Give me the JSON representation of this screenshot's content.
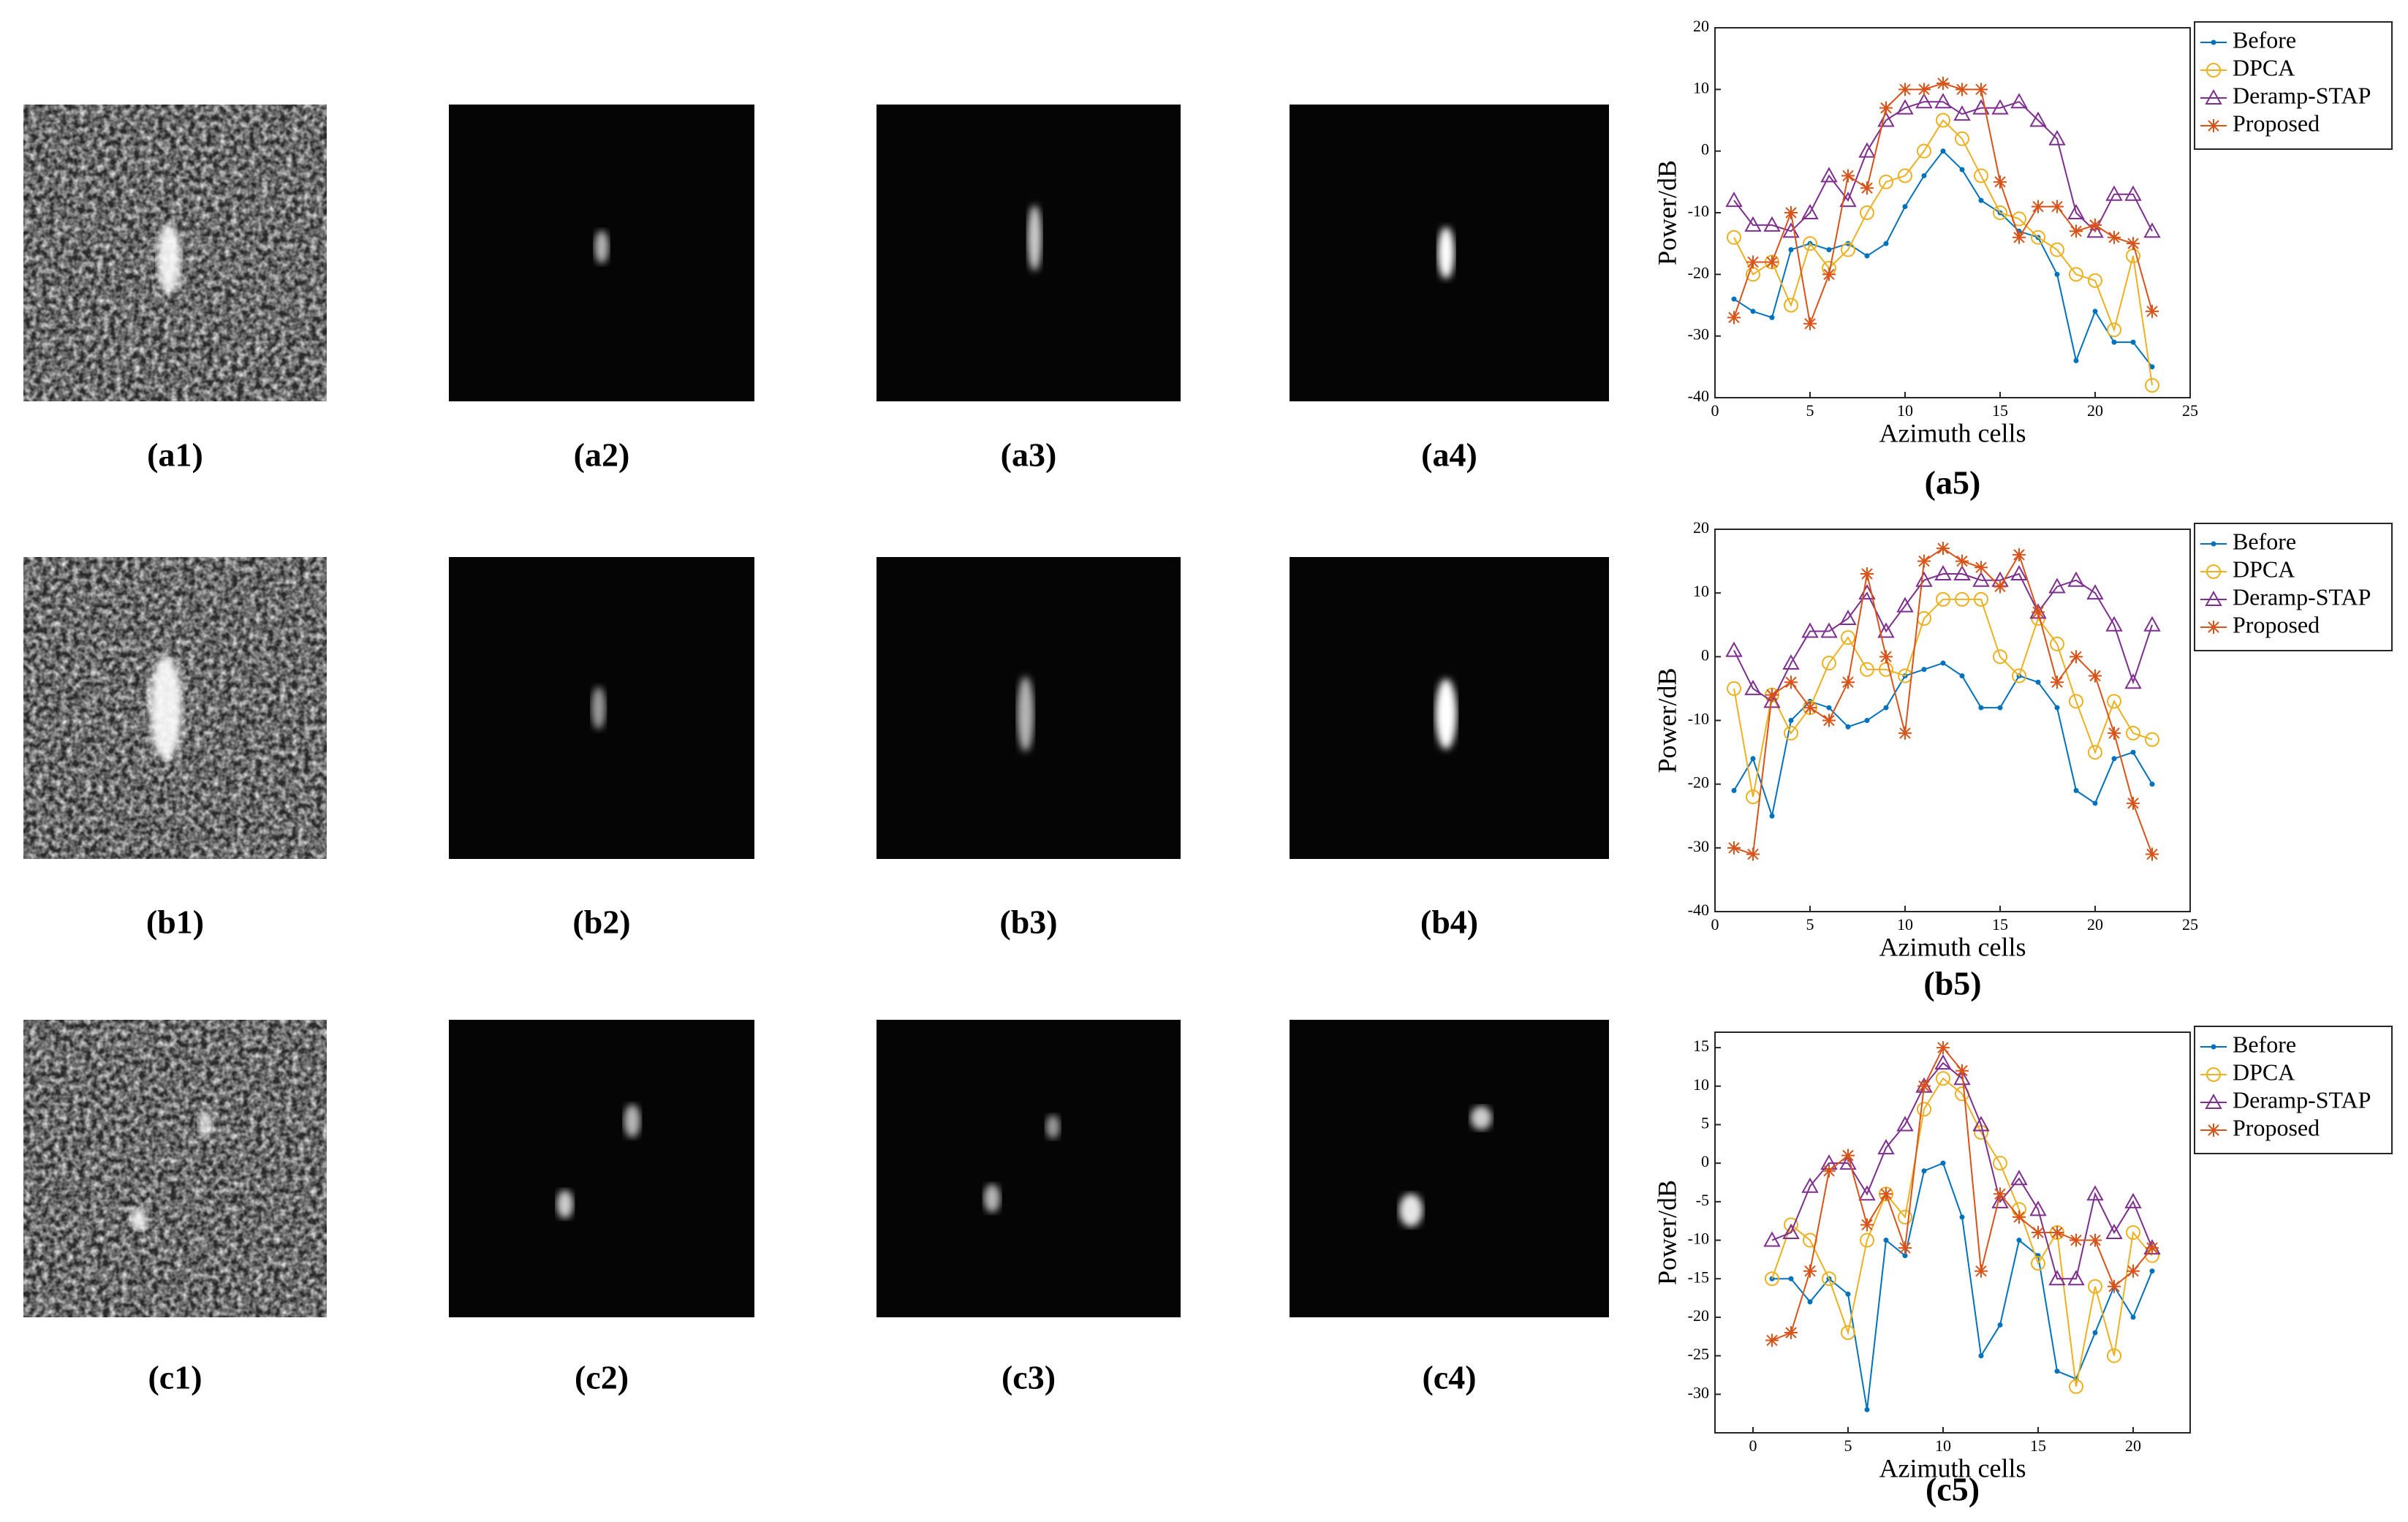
{
  "panels": [
    [
      "(a1)",
      "(a2)",
      "(a3)",
      "(a4)"
    ],
    [
      "(b1)",
      "(b2)",
      "(b3)",
      "(b4)"
    ],
    [
      "(c1)",
      "(c2)",
      "(c3)",
      "(c4)"
    ]
  ],
  "chart_data": [
    {
      "type": "line",
      "caption": "(a5)",
      "xlabel": "Azimuth cells",
      "ylabel": "Power/dB",
      "xlim": [
        0,
        25
      ],
      "xticks": [
        0,
        5,
        10,
        15,
        20,
        25
      ],
      "ylim": [
        -40,
        20
      ],
      "yticks": [
        -40,
        -30,
        -20,
        -10,
        0,
        10,
        20
      ],
      "x": [
        1,
        2,
        3,
        4,
        5,
        6,
        7,
        8,
        9,
        10,
        11,
        12,
        13,
        14,
        15,
        16,
        17,
        18,
        19,
        20,
        21,
        22,
        23
      ],
      "series": [
        {
          "name": "Before",
          "color": "#0072bd",
          "marker": "dot",
          "values": [
            -24,
            -26,
            -27,
            -16,
            -15,
            -16,
            -15,
            -17,
            -15,
            -9,
            -4,
            0,
            -3,
            -8,
            -10,
            -13,
            -14,
            -20,
            -34,
            -26,
            -31,
            -31,
            -35
          ]
        },
        {
          "name": "DPCA",
          "color": "#edb120",
          "marker": "circle",
          "values": [
            -14,
            -20,
            -18,
            -25,
            -15,
            -19,
            -16,
            -10,
            -5,
            -4,
            0,
            5,
            2,
            -4,
            -10,
            -11,
            -14,
            -16,
            -20,
            -21,
            -29,
            -17,
            -38
          ]
        },
        {
          "name": "Deramp-STAP",
          "color": "#7e2f8e",
          "marker": "triangle",
          "values": [
            -8,
            -12,
            -12,
            -13,
            -10,
            -4,
            -8,
            0,
            5,
            7,
            8,
            8,
            6,
            7,
            7,
            8,
            5,
            2,
            -10,
            -13,
            -7,
            -7,
            -13
          ]
        },
        {
          "name": "Proposed",
          "color": "#d95319",
          "marker": "star",
          "values": [
            -27,
            -18,
            -18,
            -10,
            -28,
            -20,
            -4,
            -6,
            7,
            10,
            10,
            11,
            10,
            10,
            -5,
            -14,
            -9,
            -9,
            -13,
            -12,
            -14,
            -15,
            -26
          ]
        }
      ]
    },
    {
      "type": "line",
      "caption": "(b5)",
      "xlabel": "Azimuth cells",
      "ylabel": "Power/dB",
      "xlim": [
        0,
        25
      ],
      "xticks": [
        0,
        5,
        10,
        15,
        20,
        25
      ],
      "ylim": [
        -40,
        20
      ],
      "yticks": [
        -40,
        -30,
        -20,
        -10,
        0,
        10,
        20
      ],
      "x": [
        1,
        2,
        3,
        4,
        5,
        6,
        7,
        8,
        9,
        10,
        11,
        12,
        13,
        14,
        15,
        16,
        17,
        18,
        19,
        20,
        21,
        22,
        23
      ],
      "series": [
        {
          "name": "Before",
          "color": "#0072bd",
          "marker": "dot",
          "values": [
            -21,
            -16,
            -25,
            -10,
            -7,
            -8,
            -11,
            -10,
            -8,
            -3,
            -2,
            -1,
            -3,
            -8,
            -8,
            -3,
            -4,
            -8,
            -21,
            -23,
            -16,
            -15,
            -20
          ]
        },
        {
          "name": "DPCA",
          "color": "#edb120",
          "marker": "circle",
          "values": [
            -5,
            -22,
            -6,
            -12,
            -8,
            -1,
            3,
            -2,
            -2,
            -3,
            6,
            9,
            9,
            9,
            0,
            -3,
            6,
            2,
            -7,
            -15,
            -7,
            -12,
            -13
          ]
        },
        {
          "name": "Deramp-STAP",
          "color": "#7e2f8e",
          "marker": "triangle",
          "values": [
            1,
            -5,
            -7,
            -1,
            4,
            4,
            6,
            10,
            4,
            8,
            12,
            13,
            13,
            12,
            12,
            13,
            7,
            11,
            12,
            10,
            5,
            -4,
            5
          ]
        },
        {
          "name": "Proposed",
          "color": "#d95319",
          "marker": "star",
          "values": [
            -30,
            -31,
            -6,
            -4,
            -8,
            -10,
            -4,
            13,
            0,
            -12,
            15,
            17,
            15,
            14,
            11,
            16,
            7,
            -4,
            0,
            -3,
            -12,
            -23,
            -31
          ]
        }
      ]
    },
    {
      "type": "line",
      "caption": "(c5)",
      "xlabel": "Azimuth cells",
      "ylabel": "Power/dB",
      "xlim": [
        -2,
        23
      ],
      "xticks": [
        0,
        5,
        10,
        15,
        20
      ],
      "ylim": [
        -35,
        17
      ],
      "yticks": [
        -30,
        -25,
        -20,
        -15,
        -10,
        -5,
        0,
        5,
        10,
        15
      ],
      "x": [
        1,
        2,
        3,
        4,
        5,
        6,
        7,
        8,
        9,
        10,
        11,
        12,
        13,
        14,
        15,
        16,
        17,
        18,
        19,
        20,
        21
      ],
      "series": [
        {
          "name": "Before",
          "color": "#0072bd",
          "marker": "dot",
          "values": [
            -15,
            -15,
            -18,
            -15,
            -17,
            -32,
            -10,
            -12,
            -1,
            0,
            -7,
            -25,
            -21,
            -10,
            -12,
            -27,
            -28,
            -22,
            -16,
            -20,
            -14
          ]
        },
        {
          "name": "DPCA",
          "color": "#edb120",
          "marker": "circle",
          "values": [
            -15,
            -8,
            -10,
            -15,
            -22,
            -10,
            -4,
            -7,
            7,
            11,
            9,
            4,
            0,
            -6,
            -13,
            -9,
            -29,
            -16,
            -25,
            -9,
            -12
          ]
        },
        {
          "name": "Deramp-STAP",
          "color": "#7e2f8e",
          "marker": "triangle",
          "values": [
            -10,
            -9,
            -3,
            0,
            0,
            -4,
            2,
            5,
            10,
            13,
            11,
            5,
            -5,
            -2,
            -6,
            -15,
            -15,
            -4,
            -9,
            -5,
            -11
          ]
        },
        {
          "name": "Proposed",
          "color": "#d95319",
          "marker": "star",
          "values": [
            -23,
            -22,
            -14,
            -1,
            1,
            -8,
            -4,
            -11,
            10,
            15,
            12,
            -14,
            -4,
            -7,
            -9,
            -9,
            -10,
            -10,
            -16,
            -14,
            -11
          ]
        }
      ]
    }
  ]
}
